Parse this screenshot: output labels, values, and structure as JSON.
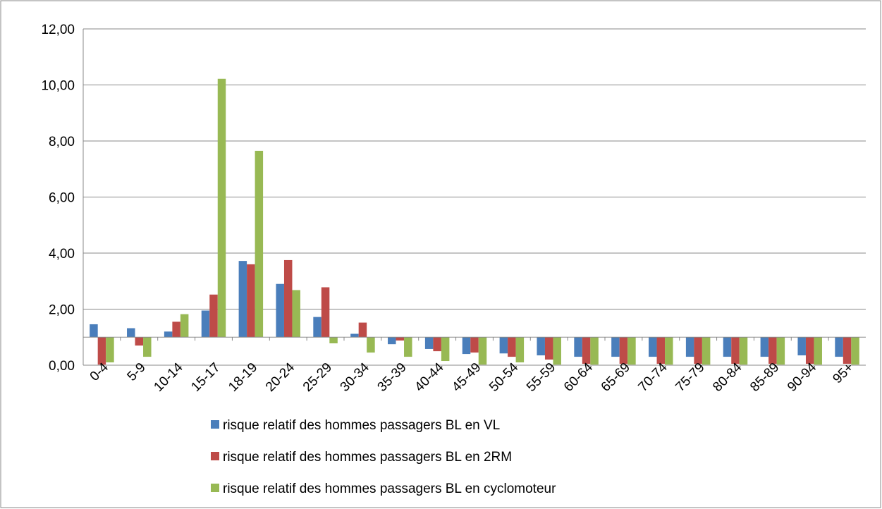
{
  "chart_data": {
    "type": "bar",
    "baseline": 1,
    "categories": [
      "0-4",
      "5-9",
      "10-14",
      "15-17",
      "18-19",
      "20-24",
      "25-29",
      "30-34",
      "35-39",
      "40-44",
      "45-49",
      "50-54",
      "55-59",
      "60-64",
      "65-69",
      "70-74",
      "75-79",
      "80-84",
      "85-89",
      "90-94",
      "95+"
    ],
    "series": [
      {
        "name": "risque relatif des hommes passagers BL en VL",
        "color": "#4a7ebb",
        "values": [
          1.46,
          1.32,
          1.2,
          1.95,
          3.72,
          2.9,
          1.72,
          1.12,
          0.75,
          0.58,
          0.4,
          0.42,
          0.35,
          0.3,
          0.3,
          0.3,
          0.3,
          0.3,
          0.3,
          0.35,
          0.3
        ]
      },
      {
        "name": "risque relatif des hommes passagers BL en 2RM",
        "color": "#be4b48",
        "values": [
          0.02,
          0.7,
          1.55,
          2.52,
          3.6,
          3.75,
          2.78,
          1.52,
          0.88,
          0.5,
          0.45,
          0.3,
          0.2,
          0.05,
          0.05,
          0.05,
          0.05,
          0.05,
          0.05,
          0.05,
          0.05
        ]
      },
      {
        "name": "risque relatif des hommes passagers BL en cyclomoteur",
        "color": "#98b954",
        "values": [
          0.1,
          0.3,
          1.82,
          10.22,
          7.65,
          2.68,
          0.78,
          0.45,
          0.3,
          0.15,
          0.02,
          0.1,
          0.02,
          0.02,
          0.02,
          0.02,
          0.02,
          0.02,
          0.02,
          0.02,
          0.02
        ]
      }
    ],
    "ylim": [
      0,
      12
    ],
    "yticks": [
      {
        "value": 0,
        "label": "0,00"
      },
      {
        "value": 2,
        "label": "2,00"
      },
      {
        "value": 4,
        "label": "4,00"
      },
      {
        "value": 6,
        "label": "6,00"
      },
      {
        "value": 8,
        "label": "8,00"
      },
      {
        "value": 10,
        "label": "10,00"
      },
      {
        "value": 12,
        "label": "12,00"
      }
    ],
    "grid": true,
    "legend": "bottom"
  }
}
